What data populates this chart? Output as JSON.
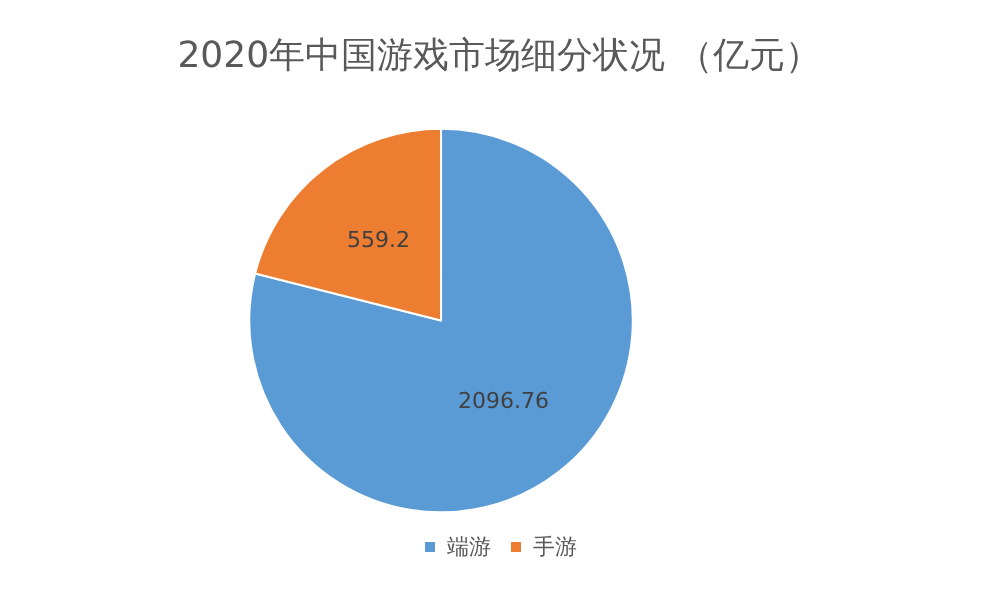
{
  "chart_data": {
    "type": "pie",
    "title": "2020年中国游戏市场细分状况 （亿元）",
    "categories": [
      "端游",
      "手游"
    ],
    "values": [
      2096.76,
      559.2
    ],
    "colors": [
      "#5b9bd5",
      "#ed7d31"
    ],
    "data_labels": true,
    "legend": "bottom"
  }
}
